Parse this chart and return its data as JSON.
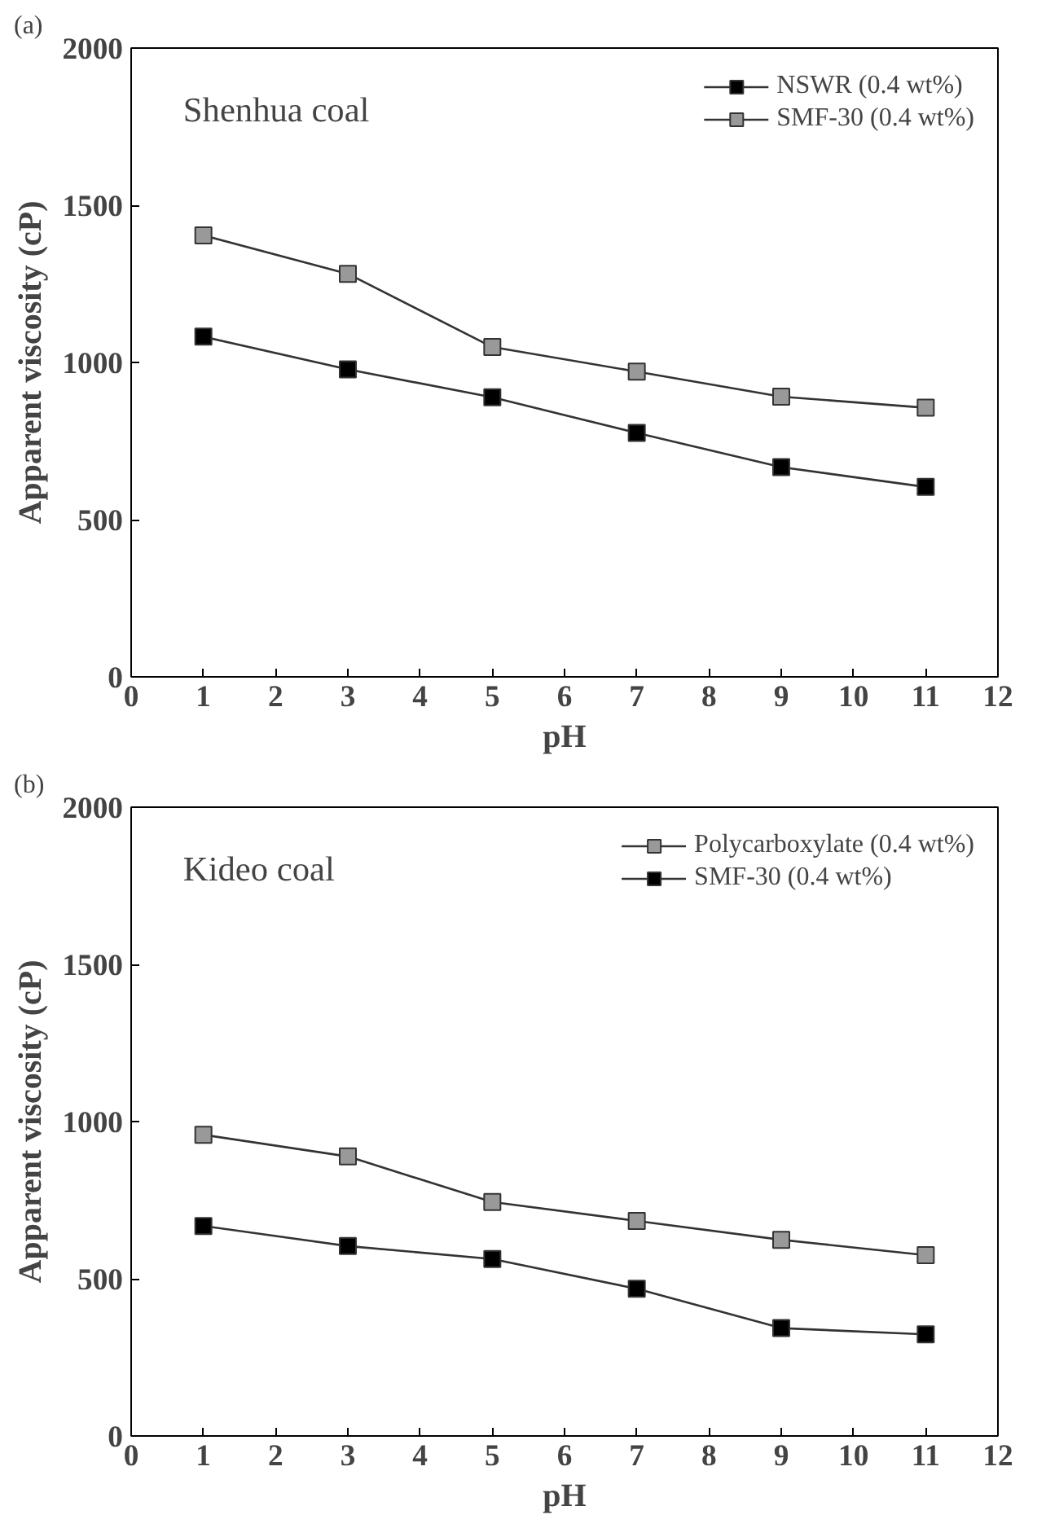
{
  "chart_data": [
    {
      "type": "line",
      "xlabel": "pH",
      "ylabel": "Apparent viscosity (cP)",
      "annotations": [
        "(a)",
        "Shenhua coal"
      ],
      "x": [
        1,
        3,
        5,
        7,
        9,
        11
      ],
      "xlim": [
        0,
        12
      ],
      "xticks": [
        0,
        1,
        2,
        3,
        4,
        5,
        6,
        7,
        8,
        9,
        10,
        11,
        12
      ],
      "ylim": [
        0,
        2000
      ],
      "yticks": [
        0,
        500,
        1000,
        1500,
        2000
      ],
      "grid": false,
      "legend": "top right",
      "marker": "square",
      "line_style": "solid",
      "series": [
        {
          "name": "NSWR (0.4 wt%)",
          "color": "#000000",
          "values": [
            1082,
            978,
            889,
            776,
            667,
            604
          ]
        },
        {
          "name": "SMF-30 (0.4 wt%)",
          "color": "#999999",
          "values": [
            1404,
            1282,
            1049,
            971,
            891,
            856
          ]
        }
      ]
    },
    {
      "type": "line",
      "xlabel": "pH",
      "ylabel": "Apparent viscosity (cP)",
      "annotations": [
        "(b)",
        "Kideo coal"
      ],
      "x": [
        1,
        3,
        5,
        7,
        9,
        11
      ],
      "xlim": [
        0,
        12
      ],
      "xticks": [
        0,
        1,
        2,
        3,
        4,
        5,
        6,
        7,
        8,
        9,
        10,
        11,
        12
      ],
      "ylim": [
        0,
        2000
      ],
      "yticks": [
        0,
        500,
        1000,
        1500,
        2000
      ],
      "grid": false,
      "legend": "top right",
      "marker": "square",
      "line_style": "solid",
      "series": [
        {
          "name": "Polycarboxylate (0.4 wt%)",
          "color": "#999999",
          "values": [
            958,
            889,
            744,
            684,
            624,
            575
          ]
        },
        {
          "name": "SMF-30 (0.4 wt%)",
          "color": "#000000",
          "values": [
            668,
            604,
            563,
            468,
            343,
            323
          ]
        }
      ]
    }
  ]
}
